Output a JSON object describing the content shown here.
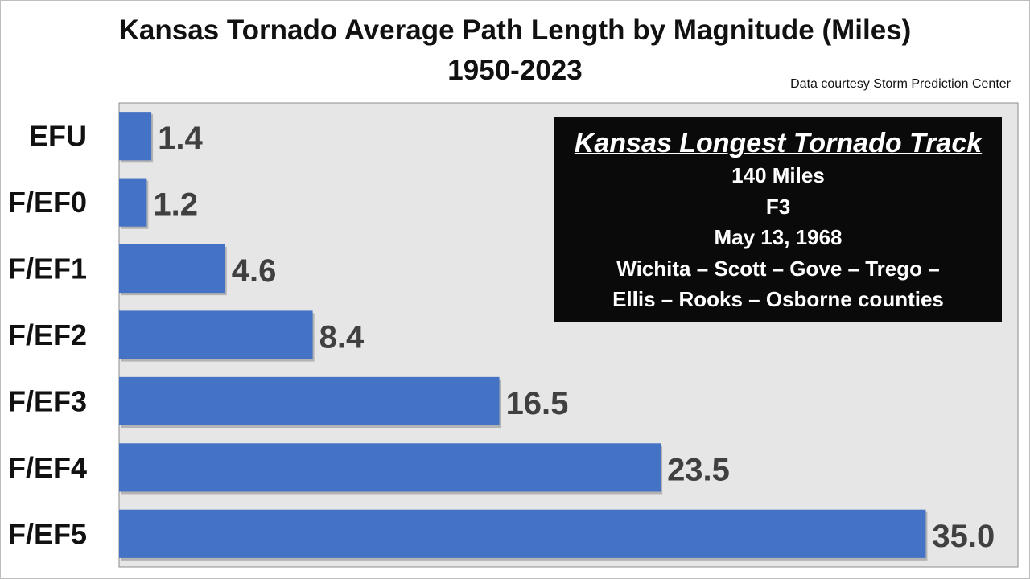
{
  "title_line1": "Kansas Tornado Average Path Length by Magnitude (Miles)",
  "title_line2": "1950-2023",
  "credit": "Data courtesy Storm Prediction Center",
  "callout": {
    "title": "Kansas Longest Tornado Track",
    "lines": [
      "140 Miles",
      "F3",
      "May 13, 1968",
      "Wichita – Scott – Gove – Trego –",
      "Ellis – Rooks – Osborne counties"
    ]
  },
  "colors": {
    "bar": "#4472c4",
    "plot_background": "#e6e6e6",
    "value_label": "#404040",
    "category_label": "#111111",
    "callout_background": "#0a0a0a"
  },
  "chart_data": {
    "type": "bar",
    "orientation": "horizontal",
    "title": "Kansas Tornado Average Path Length by Magnitude (Miles)",
    "subtitle": "1950-2023",
    "categories": [
      "EFU",
      "F/EF0",
      "F/EF1",
      "F/EF2",
      "F/EF3",
      "F/EF4",
      "F/EF5"
    ],
    "values": [
      1.4,
      1.2,
      4.6,
      8.4,
      16.5,
      23.5,
      35.0
    ],
    "value_labels": [
      "1.4",
      "1.2",
      "4.6",
      "8.4",
      "16.5",
      "23.5",
      "35.0"
    ],
    "xlabel": "",
    "ylabel": "",
    "xlim": [
      0,
      39
    ],
    "grid": false,
    "legend": "none"
  }
}
